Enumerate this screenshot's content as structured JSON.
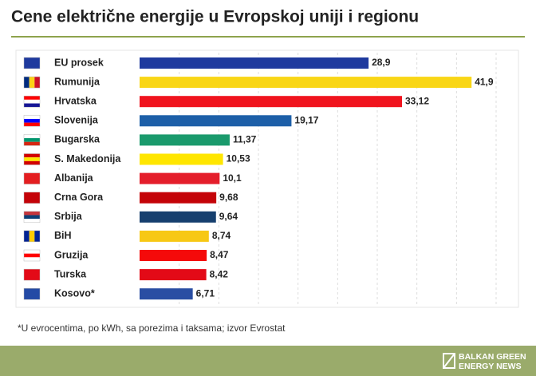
{
  "chart_data": {
    "type": "hbar",
    "title": "Cene električne energije u Evropskoj uniji i regionu",
    "categories": [
      "EU prosek",
      "Rumunija",
      "Hrvatska",
      "Slovenija",
      "Bugarska",
      "S. Makedonija",
      "Albanija",
      "Crna Gora",
      "Srbija",
      "BiH",
      "Gruzija",
      "Turska",
      "Kosovo*"
    ],
    "values": [
      28.9,
      41.9,
      33.12,
      19.17,
      11.37,
      10.53,
      10.1,
      9.68,
      9.64,
      8.74,
      8.47,
      8.42,
      6.71
    ],
    "value_labels": [
      "28,9",
      "41,9",
      "33,12",
      "19,17",
      "11,37",
      "10,53",
      "10,1",
      "9,68",
      "9,64",
      "8,74",
      "8,47",
      "8,42",
      "6,71"
    ],
    "colors": [
      "#1f3a9e",
      "#f9d616",
      "#f0141e",
      "#1d5fa8",
      "#1a9a6c",
      "#ffe600",
      "#e41e2b",
      "#c40308",
      "#163f6e",
      "#f7c815",
      "#f50a0a",
      "#e30a17",
      "#2a4ea3"
    ],
    "xlim": [
      0,
      45
    ],
    "xticks": [
      5,
      10,
      15,
      20,
      25,
      30,
      35,
      40,
      45
    ],
    "grid": true,
    "note": "*U evrocentima, po kWh, sa porezima i taksama; izvor Evrostat",
    "source": [
      "BALKAN GREEN",
      "ENERGY NEWS"
    ]
  }
}
